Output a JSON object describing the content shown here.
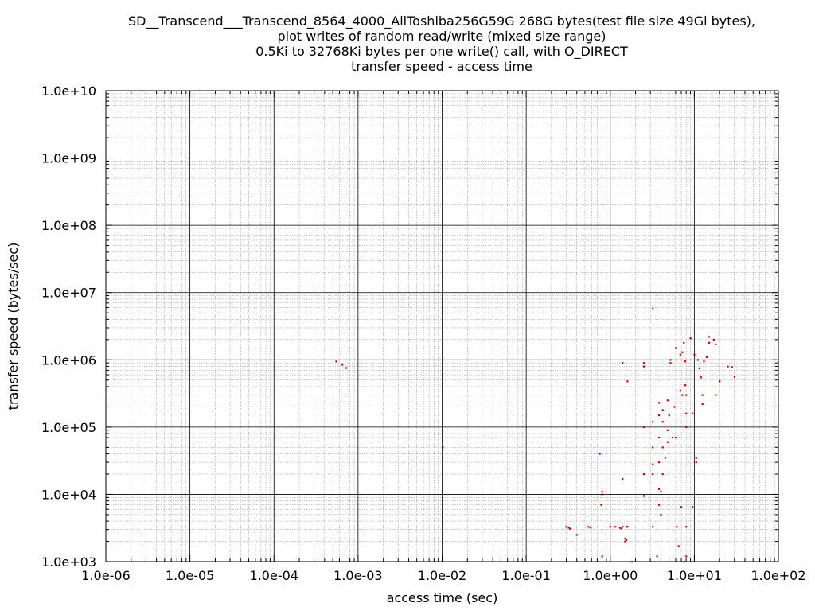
{
  "chart_data": {
    "type": "scatter",
    "title_lines": [
      "SD__Transcend___Transcend_8564_4000_AliToshiba256G59G 268G bytes(test file size 49Gi bytes),",
      "plot writes of random read/write (mixed size range)",
      "0.5Ki to 32768Ki bytes per one write() call, with O_DIRECT",
      "transfer speed - access time"
    ],
    "xlabel": "access time (sec)",
    "ylabel": "transfer speed (bytes/sec)",
    "xscale": "log",
    "yscale": "log",
    "xlim": [
      1e-06,
      100
    ],
    "ylim": [
      1000,
      10000000000.0
    ],
    "x_ticks": [
      "1.0e-06",
      "1.0e-05",
      "1.0e-04",
      "1.0e-03",
      "1.0e-02",
      "1.0e-01",
      "1.0e+00",
      "1.0e+01",
      "1.0e+02"
    ],
    "y_ticks": [
      "1.0e+03",
      "1.0e+04",
      "1.0e+05",
      "1.0e+06",
      "1.0e+07",
      "1.0e+08",
      "1.0e+09",
      "1.0e+10"
    ],
    "grid": true,
    "point_color": "#cc0000",
    "points": [
      [
        0.00055,
        950000
      ],
      [
        0.00065,
        850000
      ],
      [
        0.00072,
        760000
      ],
      [
        0.0102,
        50000
      ],
      [
        0.3,
        3300
      ],
      [
        0.32,
        3200
      ],
      [
        0.33,
        3100
      ],
      [
        0.4,
        2500
      ],
      [
        0.55,
        3300
      ],
      [
        0.58,
        3200
      ],
      [
        0.75,
        40000
      ],
      [
        0.8,
        11000
      ],
      [
        0.8,
        10000
      ],
      [
        0.78,
        7000
      ],
      [
        0.8,
        1200
      ],
      [
        1.0,
        3300
      ],
      [
        1.15,
        3300
      ],
      [
        1.3,
        3200
      ],
      [
        1.4,
        3300
      ],
      [
        1.35,
        3100
      ],
      [
        1.5,
        2200
      ],
      [
        1.55,
        2100
      ],
      [
        1.55,
        3300
      ],
      [
        1.5,
        2000
      ],
      [
        1.6,
        3300
      ],
      [
        1.4,
        900000
      ],
      [
        1.4,
        17000
      ],
      [
        1.6,
        480000
      ],
      [
        1.8,
        1000
      ],
      [
        2.5,
        900000
      ],
      [
        2.5,
        800000
      ],
      [
        2.5,
        100000
      ],
      [
        2.5,
        20000
      ],
      [
        2.5,
        9500
      ],
      [
        3.2,
        5800000
      ],
      [
        3.2,
        120000
      ],
      [
        3.2,
        50000
      ],
      [
        3.2,
        28000
      ],
      [
        3.2,
        20000
      ],
      [
        3.2,
        3300
      ],
      [
        3.6,
        1200
      ],
      [
        3.8,
        230000
      ],
      [
        3.8,
        150000
      ],
      [
        3.8,
        70000
      ],
      [
        3.8,
        30000
      ],
      [
        3.8,
        12000
      ],
      [
        3.8,
        7000
      ],
      [
        4.0,
        11000
      ],
      [
        4.0,
        5000
      ],
      [
        4.2,
        180000
      ],
      [
        4.2,
        120000
      ],
      [
        4.2,
        50000
      ],
      [
        4.2,
        20000
      ],
      [
        4.5,
        35000
      ],
      [
        4.8,
        250000
      ],
      [
        4.8,
        90000
      ],
      [
        4.8,
        60000
      ],
      [
        5.0,
        150000
      ],
      [
        5.2,
        1000000
      ],
      [
        5.2,
        900000
      ],
      [
        5.5,
        70000
      ],
      [
        5.8,
        200000
      ],
      [
        6.0,
        1500000
      ],
      [
        6.0,
        70000
      ],
      [
        6.2,
        3300
      ],
      [
        6.5,
        1700
      ],
      [
        6.8,
        1200000
      ],
      [
        6.8,
        350000
      ],
      [
        7.0,
        6500
      ],
      [
        7.2,
        1300000
      ],
      [
        7.2,
        300000
      ],
      [
        7.5,
        1800000
      ],
      [
        7.5,
        1000
      ],
      [
        7.8,
        950000
      ],
      [
        7.8,
        420000
      ],
      [
        8.0,
        300000
      ],
      [
        8.0,
        160000
      ],
      [
        8.0,
        100000
      ],
      [
        8.0,
        3300
      ],
      [
        8.0,
        1200
      ],
      [
        9.0,
        2100000
      ],
      [
        9.5,
        6500
      ],
      [
        9.5,
        160000
      ],
      [
        10.0,
        1200000
      ],
      [
        10.5,
        30000
      ],
      [
        10.5,
        35000
      ],
      [
        11.0,
        1000000
      ],
      [
        11.5,
        750000
      ],
      [
        12.0,
        550000
      ],
      [
        12.5,
        300000
      ],
      [
        12.5,
        220000
      ],
      [
        13.0,
        950000
      ],
      [
        14.0,
        1100000
      ],
      [
        15.0,
        1800000
      ],
      [
        15.0,
        2200000
      ],
      [
        17.0,
        2000000
      ],
      [
        18.0,
        1700000
      ],
      [
        18.0,
        300000
      ],
      [
        20.0,
        480000
      ],
      [
        25.0,
        800000
      ],
      [
        28.0,
        780000
      ],
      [
        30.0,
        560000
      ]
    ]
  }
}
